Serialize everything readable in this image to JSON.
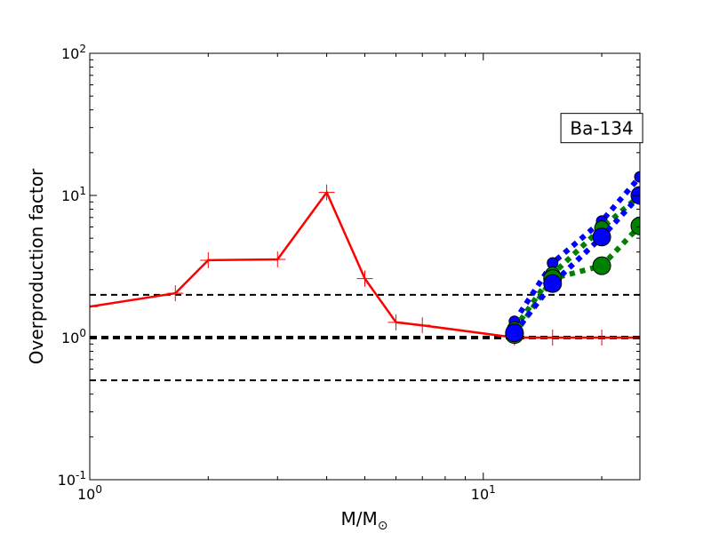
{
  "chart_data": {
    "type": "line",
    "xscale": "log",
    "yscale": "log",
    "xlim": [
      1,
      25
    ],
    "ylim": [
      0.1,
      100
    ],
    "xlabel_main": "M/M",
    "xlabel_sub": "⊙",
    "ylabel": "Overproduction factor",
    "grid": false,
    "legend": "none",
    "x_ticks": [
      {
        "base": "10",
        "exp": "0",
        "value": 1
      },
      {
        "base": "10",
        "exp": "1",
        "value": 10
      }
    ],
    "y_ticks": [
      {
        "base": "10",
        "exp": "-1",
        "value": 0.1
      },
      {
        "base": "10",
        "exp": "0",
        "value": 1
      },
      {
        "base": "10",
        "exp": "1",
        "value": 10
      },
      {
        "base": "10",
        "exp": "2",
        "value": 100
      }
    ],
    "annotation": {
      "text": "Ba-134",
      "x": 20,
      "y": 30
    },
    "reference_lines": [
      {
        "y": 2.0,
        "style": "dashed",
        "width": "thin",
        "color": "#000000"
      },
      {
        "y": 1.0,
        "style": "dashed",
        "width": "thick",
        "color": "#000000"
      },
      {
        "y": 0.5,
        "style": "dashed",
        "width": "thin",
        "color": "#000000"
      }
    ],
    "series": [
      {
        "style": "solid",
        "color": "#ff0000",
        "marker": "plus",
        "points": [
          [
            1.0,
            1.65
          ],
          [
            1.65,
            2.05
          ],
          [
            2.0,
            3.5
          ],
          [
            3.0,
            3.55
          ],
          [
            4.0,
            10.5
          ],
          [
            5.0,
            2.6
          ],
          [
            6.0,
            1.28
          ],
          [
            7.0,
            1.22
          ],
          [
            12.0,
            1.0
          ],
          [
            15.0,
            1.0
          ],
          [
            20.0,
            1.0
          ],
          [
            25.0,
            1.0
          ]
        ]
      },
      {
        "style": "dotted",
        "color": "#0000ff",
        "marker": "circle-small",
        "points": [
          [
            12.0,
            1.3
          ],
          [
            15.0,
            3.35
          ],
          [
            20.0,
            6.6
          ],
          [
            25.0,
            13.5
          ]
        ]
      },
      {
        "style": "dotted",
        "color": "#008000",
        "marker": "circle-medium",
        "points": [
          [
            12.0,
            1.15
          ],
          [
            15.0,
            2.8
          ],
          [
            20.0,
            5.9
          ],
          [
            25.0,
            10.0
          ]
        ]
      },
      {
        "style": "dotted",
        "color": "#008000",
        "marker": "circle-large",
        "points": [
          [
            12.0,
            1.05
          ],
          [
            15.0,
            2.6
          ],
          [
            20.0,
            3.2
          ],
          [
            25.0,
            6.1
          ]
        ]
      },
      {
        "style": "dotted",
        "color": "#0000ff",
        "marker": "circle-large",
        "points": [
          [
            12.0,
            1.08
          ],
          [
            15.0,
            2.4
          ],
          [
            20.0,
            5.1
          ],
          [
            25.0,
            10.0
          ]
        ]
      }
    ]
  }
}
